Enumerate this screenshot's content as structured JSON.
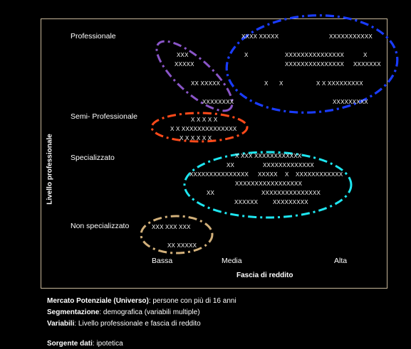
{
  "diagram": {
    "y_axis_title": "Livello professionale",
    "x_axis_title": "Fascia di reddito",
    "levels": {
      "professionale": "Professionale",
      "semi": "Semi- Professionale",
      "specializzato": "Specializzato",
      "non_specializzato": "Non specializzato"
    },
    "income": {
      "bassa": "Bassa",
      "media": "Media",
      "alta": "Alta"
    },
    "clusters": {
      "professionale": {
        "color": "#1a3cff",
        "rows": [
          "XXXX XXXXX",
          "XXXXXXXXXXX",
          "X",
          "XXXXXXXXXXXXXXX",
          "X",
          "XXXXXXXXXXXXXXX",
          "XXXXXXX",
          "X",
          "X",
          "X X XXXXXXXXX",
          "XXXXXXXXX"
        ]
      },
      "transizione": {
        "color": "#8a55c8",
        "rows": [
          "XXX",
          "XXXXX",
          "XX XXXXX",
          "XXXXXXXX"
        ]
      },
      "semi_professionale": {
        "color": "#ff4a1a",
        "rows": [
          "X X X X X",
          "X X XXXXXXXXXXXXXX",
          "X X X X X X"
        ]
      },
      "specializzato": {
        "color": "#1ee6f0",
        "rows": [
          "X XXX XXXXXXXXXXXX",
          "XX",
          "XXXXXXXXXXXXX",
          "XXXXXXXXXXXXXXX",
          "XXXXX",
          "X",
          "XXXXXXXXXXXX",
          "XXXXXXXXXXXXXXXXX",
          "XX",
          "XXXXXXXXXXXXXXX",
          "XXXXXX",
          "XXXXXXXXX"
        ]
      },
      "non_specializzato": {
        "color": "#d2b07a",
        "rows": [
          "XXX XXX XXX",
          "XX XXXXX"
        ]
      }
    }
  },
  "notes": {
    "universo_label": "Mercato Potenziale (Universo)",
    "universo_text": ": persone con più di 16 anni",
    "segmentazione_label": "Segmentazione",
    "segmentazione_text": ": demografica (variabili multiple)",
    "variabili_label": "Variabili",
    "variabili_text": ": Livello professionale e fascia di reddito",
    "sorgente_label": "Sorgente dati",
    "sorgente_text": ": ipotetica"
  }
}
